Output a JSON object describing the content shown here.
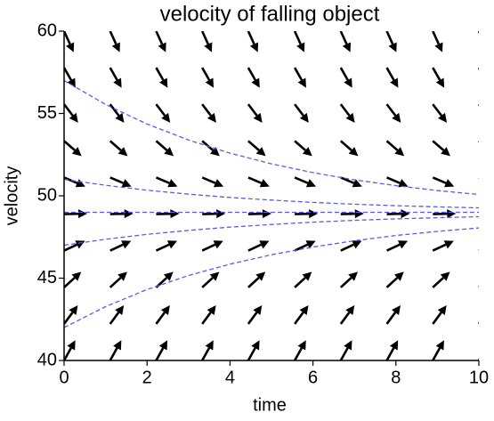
{
  "chart_data": {
    "type": "line",
    "title": "velocity of falling object",
    "x_label": "time",
    "y_label": "velocity",
    "xlim": [
      0,
      10
    ],
    "ylim": [
      40,
      60
    ],
    "xticks": [
      0,
      2,
      4,
      6,
      8,
      10
    ],
    "yticks": [
      40,
      45,
      50,
      55,
      60
    ],
    "x": [
      0,
      1,
      2,
      3,
      4,
      5,
      6,
      7,
      8,
      9,
      10
    ],
    "series": [
      {
        "color": "#5b5be8",
        "values": [
          57,
          55.55,
          54.36,
          53.39,
          52.59,
          51.94,
          51.41,
          50.97,
          50.62,
          50.32,
          50.08
        ]
      },
      {
        "color": "#5b5be8",
        "values": [
          51,
          50.64,
          50.34,
          50.1,
          49.9,
          49.74,
          49.6,
          49.49,
          49.4,
          49.33,
          49.27
        ]
      },
      {
        "color": "#5b5be8",
        "values": [
          49,
          49,
          49,
          49,
          49,
          49,
          49,
          49,
          49,
          49,
          49
        ]
      },
      {
        "color": "#5b5be8",
        "values": [
          47,
          47.36,
          47.66,
          47.9,
          48.1,
          48.26,
          48.4,
          48.51,
          48.6,
          48.67,
          48.73
        ]
      },
      {
        "color": "#5b5be8",
        "values": [
          42,
          43.27,
          44.31,
          45.16,
          45.85,
          46.42,
          46.89,
          47.27,
          47.59,
          47.84,
          48.05
        ]
      }
    ],
    "arrows": {
      "color": "#000000",
      "x": [
        0,
        1.11,
        2.22,
        3.33,
        4.44,
        5.56,
        6.67,
        7.78,
        8.89,
        10
      ],
      "y": [
        40,
        42.22,
        44.44,
        46.67,
        48.89,
        51.11,
        53.33,
        55.56,
        57.78,
        60
      ],
      "slopes": [
        1.8,
        1.356,
        0.911,
        0.467,
        0.022,
        -0.422,
        -0.867,
        -1.311,
        -1.756,
        -2.2
      ]
    }
  }
}
